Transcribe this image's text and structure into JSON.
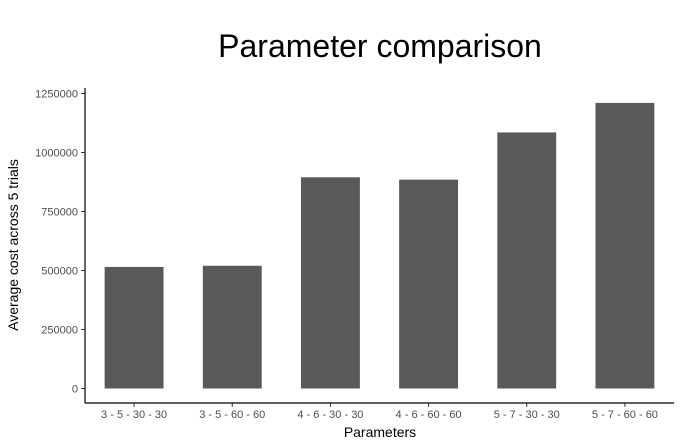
{
  "chart_data": {
    "type": "bar",
    "title": "Parameter comparison",
    "xlabel": "Parameters",
    "ylabel": "Average cost across 5 trials",
    "categories": [
      "3 - 5 - 30 - 30",
      "3 - 5 - 60 - 60",
      "4 - 6 - 30 - 30",
      "4 - 6 - 60 - 60",
      "5 - 7 - 30 - 30",
      "5 - 7 - 60 - 60"
    ],
    "values": [
      515000,
      520000,
      895000,
      885000,
      1085000,
      1210000
    ],
    "yticks": [
      0,
      250000,
      500000,
      750000,
      1000000,
      1250000
    ],
    "ylim": [
      0,
      1260000
    ],
    "grid": false,
    "legend": "none",
    "bar_color": "#595959",
    "axis_color": "#000000"
  }
}
